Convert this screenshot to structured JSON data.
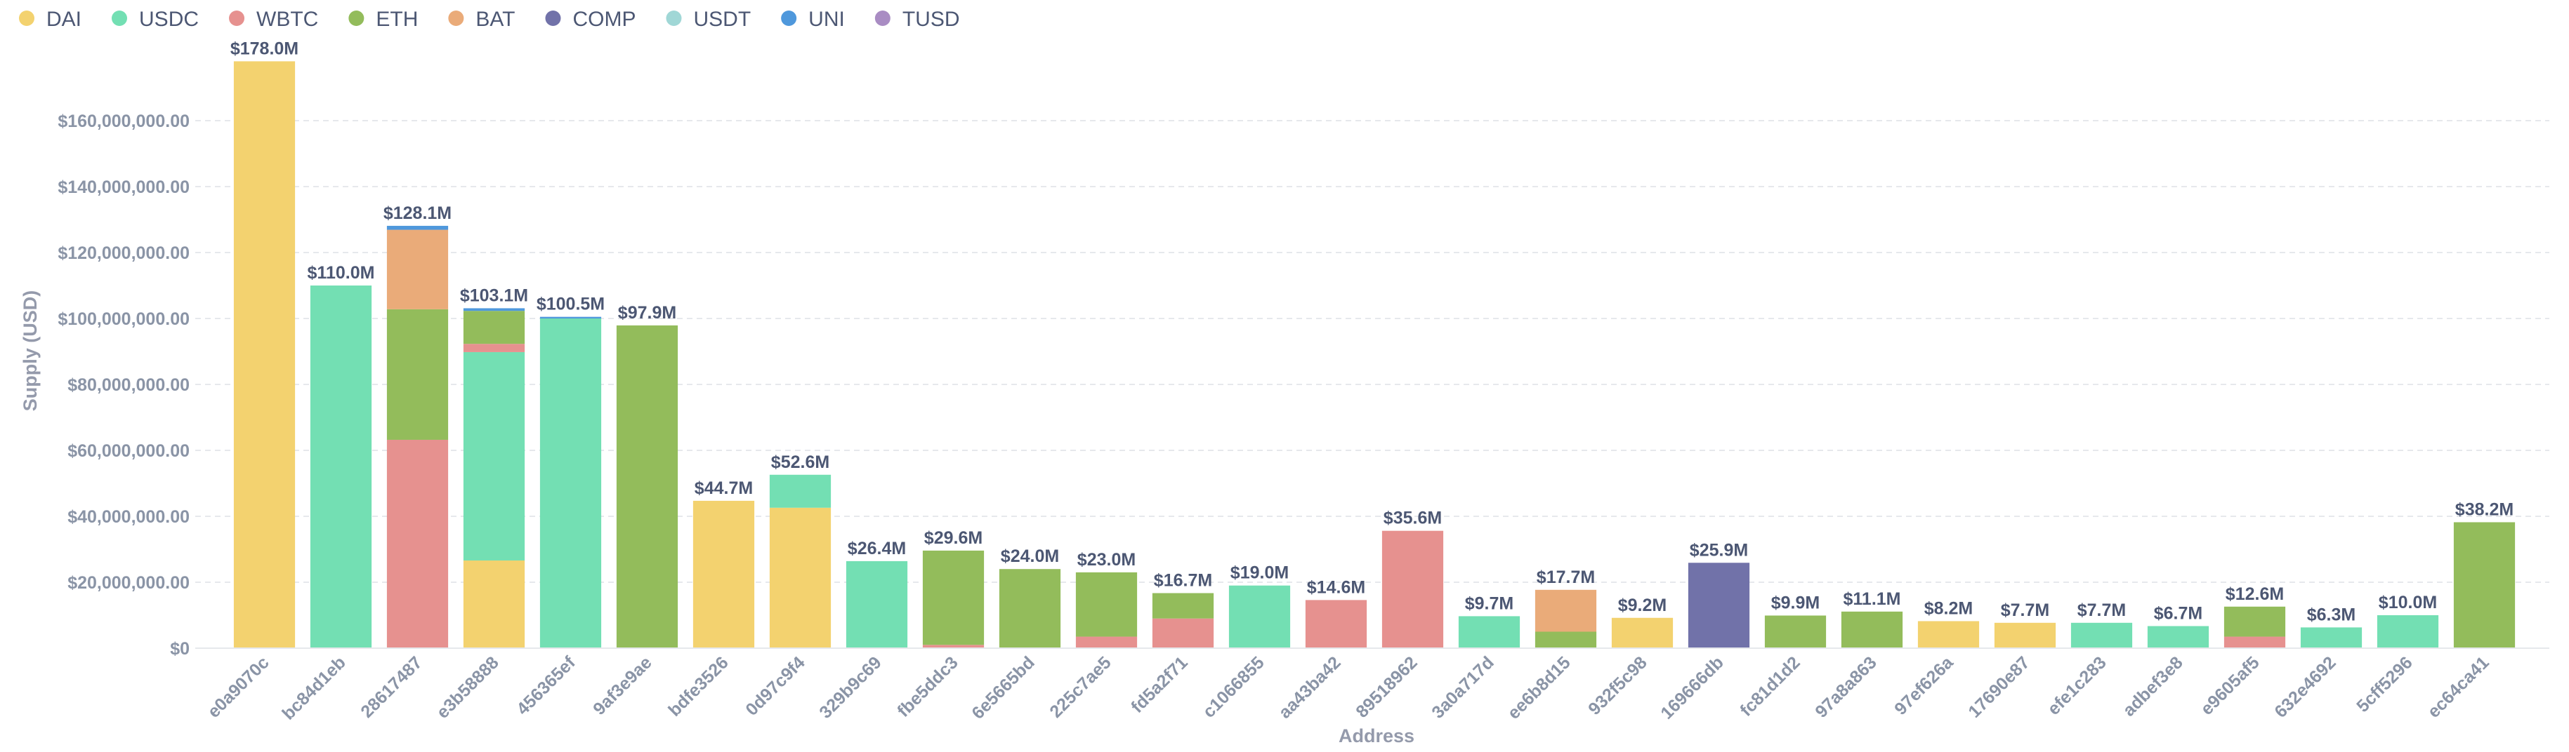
{
  "chart_data": {
    "type": "stacked_bar",
    "x_label": "Address",
    "y_label": "Supply (USD)",
    "categories": [
      "e0a9070c",
      "bc84d1eb",
      "28617487",
      "e3b58888",
      "456365ef",
      "9af3e9ae",
      "bdfe3526",
      "0d97c9f4",
      "329b9c69",
      "fbe5ddc3",
      "6e5665bd",
      "225c7ae5",
      "fd5a2f71",
      "c1066855",
      "aa43ba42",
      "89518962",
      "3a0a717d",
      "ee6b8d15",
      "932f5c98",
      "169666db",
      "fc81d1d2",
      "97a8a863",
      "97ef626a",
      "17690e87",
      "efe1c283",
      "adbef3e8",
      "e9605af5",
      "632e4692",
      "5cff5296",
      "ec64ca41"
    ],
    "series": [
      {
        "name": "DAI",
        "color": "#f3d26f",
        "values": [
          178000000,
          null,
          null,
          26600000,
          null,
          null,
          44700000,
          42600000,
          null,
          null,
          null,
          null,
          null,
          null,
          null,
          null,
          null,
          null,
          9200000,
          null,
          null,
          null,
          8200000,
          7700000,
          null,
          null,
          null,
          null,
          null,
          null
        ]
      },
      {
        "name": "USDC",
        "color": "#73dfb3",
        "values": [
          null,
          110000000,
          null,
          63200000,
          100000000,
          null,
          null,
          10000000,
          26400000,
          null,
          null,
          null,
          null,
          19000000,
          null,
          null,
          9700000,
          null,
          null,
          null,
          null,
          null,
          null,
          null,
          7700000,
          6700000,
          null,
          6300000,
          10000000,
          null
        ]
      },
      {
        "name": "WBTC",
        "color": "#e6918f",
        "values": [
          null,
          null,
          63200000,
          2500000,
          null,
          null,
          null,
          null,
          null,
          1000000,
          null,
          3500000,
          9000000,
          null,
          14600000,
          35600000,
          null,
          null,
          null,
          null,
          null,
          null,
          null,
          null,
          null,
          null,
          3500000,
          null,
          null,
          null
        ]
      },
      {
        "name": "ETH",
        "color": "#93bc5b",
        "values": [
          null,
          null,
          39600000,
          10000000,
          null,
          97900000,
          null,
          null,
          null,
          28600000,
          24000000,
          19500000,
          7700000,
          null,
          null,
          null,
          null,
          5000000,
          null,
          null,
          9900000,
          11100000,
          null,
          null,
          null,
          null,
          9100000,
          null,
          null,
          38200000
        ]
      },
      {
        "name": "BAT",
        "color": "#eaab79",
        "values": [
          null,
          null,
          24100000,
          null,
          null,
          null,
          null,
          null,
          null,
          null,
          null,
          null,
          null,
          null,
          null,
          null,
          null,
          12700000,
          null,
          null,
          null,
          null,
          null,
          null,
          null,
          null,
          null,
          null,
          null,
          null
        ]
      },
      {
        "name": "COMP",
        "color": "#7172a9",
        "values": [
          null,
          null,
          null,
          null,
          null,
          null,
          null,
          null,
          null,
          null,
          null,
          null,
          null,
          null,
          null,
          null,
          null,
          null,
          null,
          25900000,
          null,
          null,
          null,
          null,
          null,
          null,
          null,
          null,
          null,
          null
        ]
      },
      {
        "name": "USDT",
        "color": "#a0d7d6",
        "values": [
          null,
          null,
          null,
          null,
          null,
          null,
          null,
          null,
          null,
          null,
          null,
          null,
          null,
          null,
          null,
          null,
          null,
          null,
          null,
          null,
          null,
          null,
          null,
          null,
          null,
          null,
          null,
          null,
          null,
          null
        ]
      },
      {
        "name": "UNI",
        "color": "#4f98dc",
        "values": [
          null,
          null,
          1200000,
          800000,
          500000,
          null,
          null,
          null,
          null,
          null,
          null,
          null,
          null,
          null,
          null,
          null,
          null,
          null,
          null,
          null,
          null,
          null,
          null,
          null,
          null,
          null,
          null,
          null,
          null,
          null
        ]
      },
      {
        "name": "TUSD",
        "color": "#a98cc3",
        "values": [
          null,
          null,
          null,
          null,
          null,
          null,
          null,
          null,
          null,
          null,
          null,
          null,
          null,
          null,
          null,
          null,
          null,
          null,
          null,
          null,
          null,
          null,
          null,
          null,
          null,
          null,
          null,
          null,
          null,
          null
        ]
      }
    ],
    "totals": [
      178000000,
      110000000,
      128100000,
      103100000,
      100500000,
      97900000,
      44700000,
      52600000,
      26400000,
      29600000,
      24000000,
      23000000,
      16700000,
      19000000,
      14600000,
      35600000,
      9700000,
      17700000,
      9200000,
      25900000,
      9900000,
      11100000,
      8200000,
      7700000,
      7700000,
      6700000,
      12600000,
      6300000,
      10000000,
      38200000
    ],
    "total_labels": [
      "$178.0M",
      "$110.0M",
      "$128.1M",
      "$103.1M",
      "$100.5M",
      "$97.9M",
      "$44.7M",
      "$52.6M",
      "$26.4M",
      "$29.6M",
      "$24.0M",
      "$23.0M",
      "$16.7M",
      "$19.0M",
      "$14.6M",
      "$35.6M",
      "$9.7M",
      "$17.7M",
      "$9.2M",
      "$25.9M",
      "$9.9M",
      "$11.1M",
      "$8.2M",
      "$7.7M",
      "$7.7M",
      "$6.7M",
      "$12.6M",
      "$6.3M",
      "$10.0M",
      "$38.2M"
    ],
    "ylim": [
      0,
      180000000
    ],
    "yticks": [
      {
        "value": 0,
        "label": "$0"
      },
      {
        "value": 20000000,
        "label": "$20,000,000.00"
      },
      {
        "value": 40000000,
        "label": "$40,000,000.00"
      },
      {
        "value": 60000000,
        "label": "$60,000,000.00"
      },
      {
        "value": 80000000,
        "label": "$80,000,000.00"
      },
      {
        "value": 100000000,
        "label": "$100,000,000.00"
      },
      {
        "value": 120000000,
        "label": "$120,000,000.00"
      },
      {
        "value": 140000000,
        "label": "$140,000,000.00"
      },
      {
        "value": 160000000,
        "label": "$160,000,000.00"
      }
    ],
    "grid": true,
    "legend": "top-left"
  }
}
